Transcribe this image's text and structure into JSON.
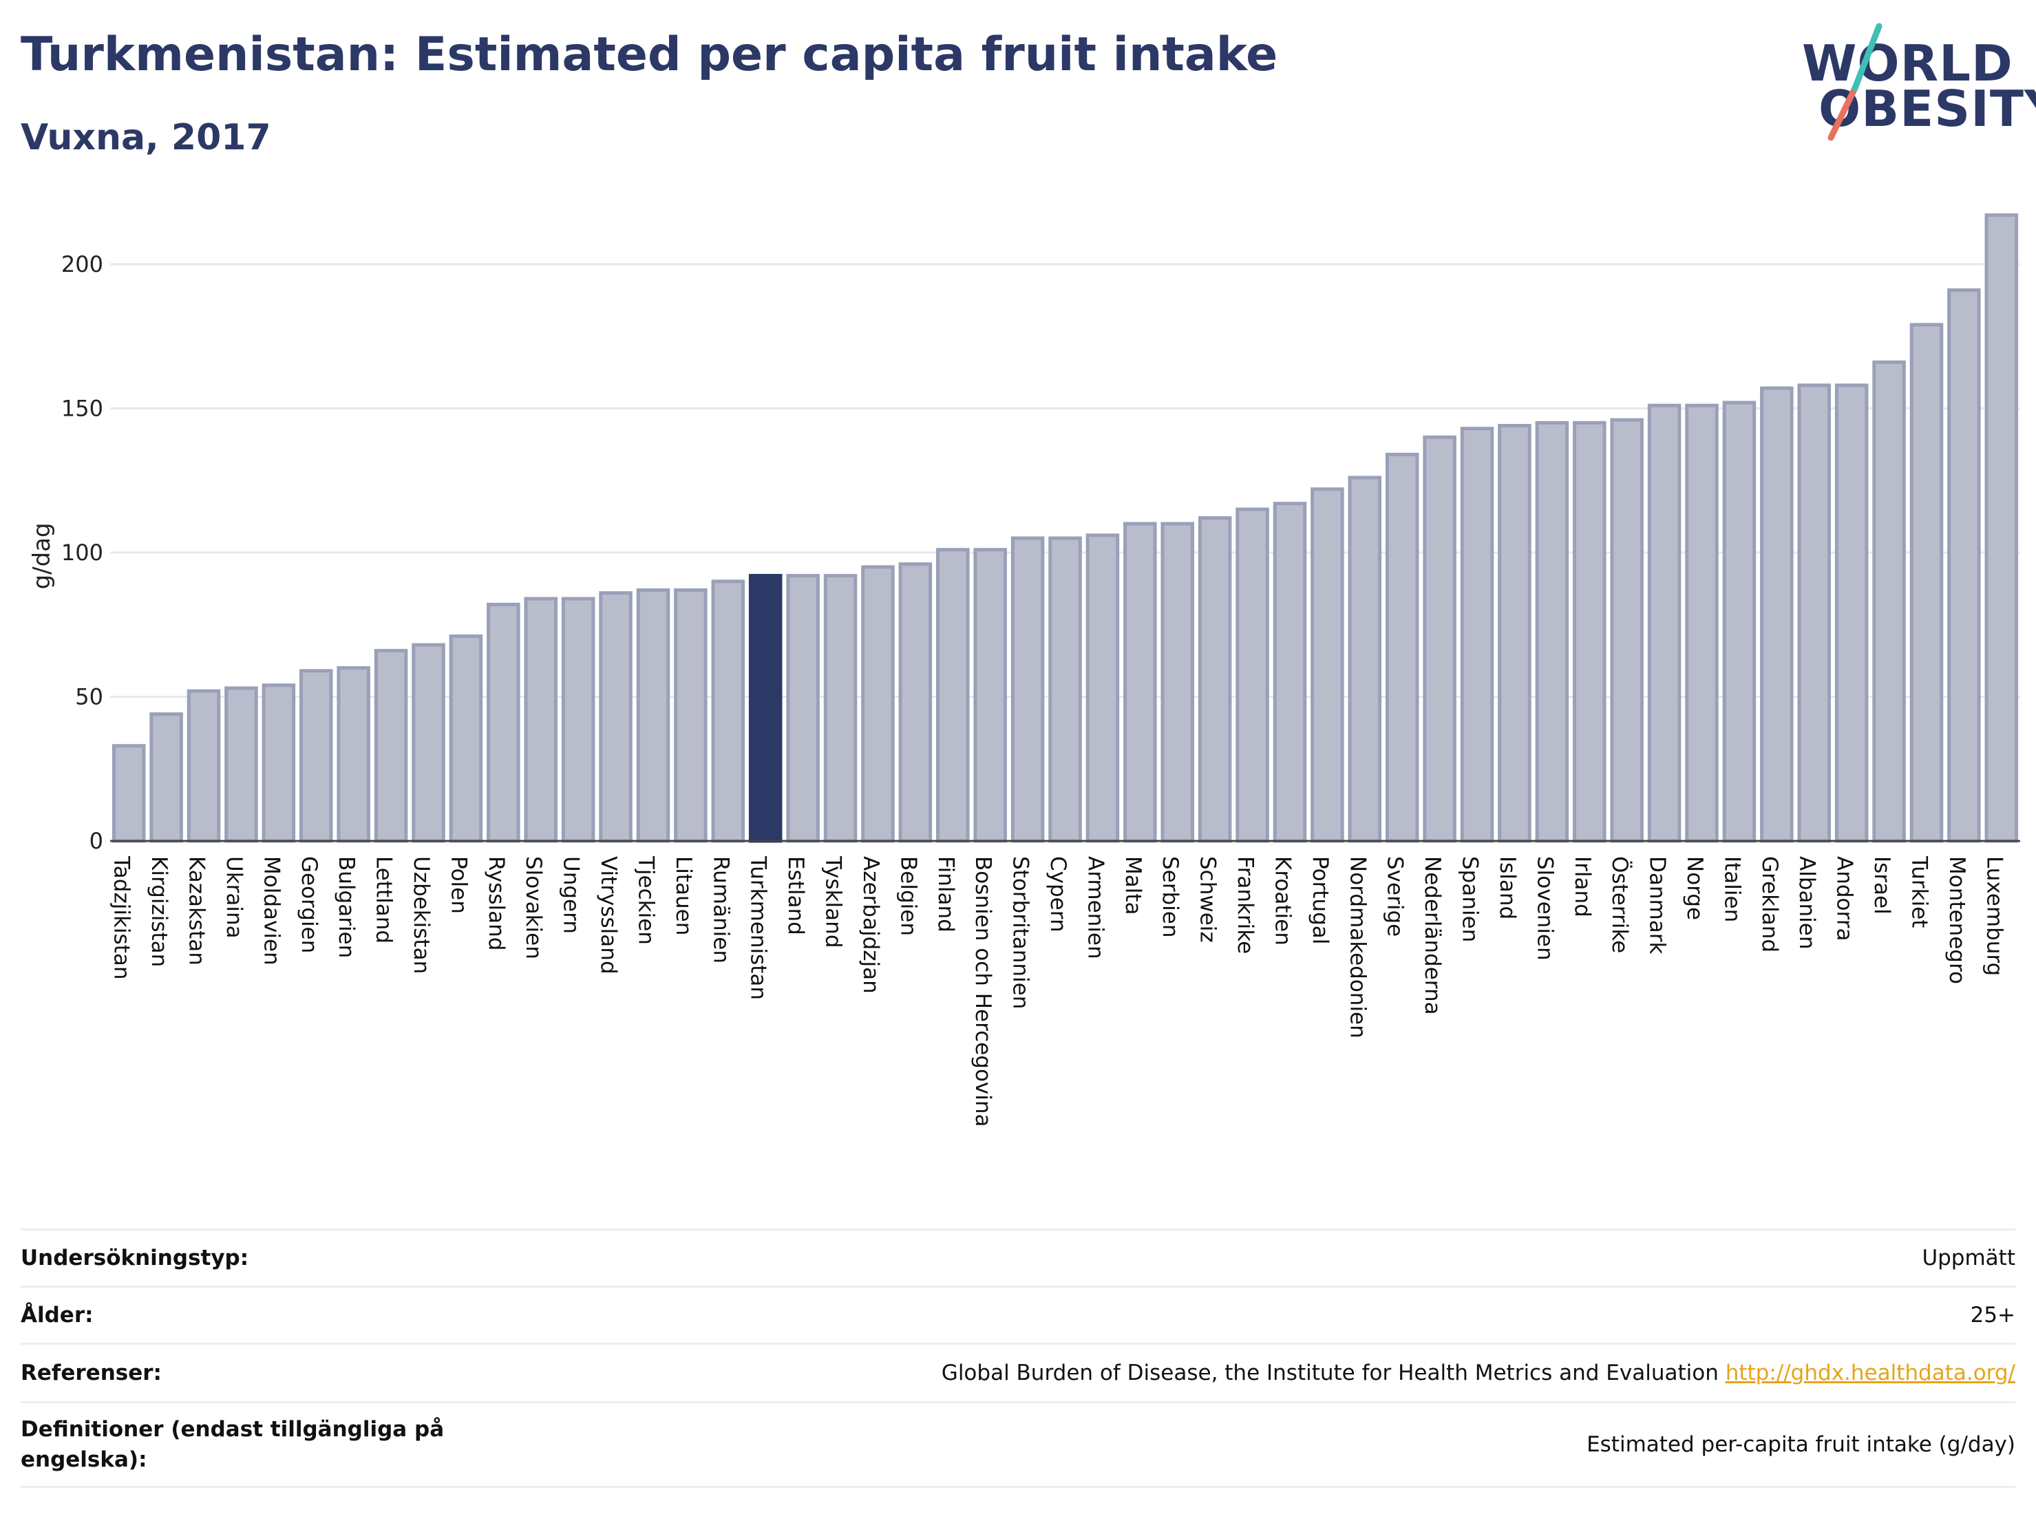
{
  "title": "Turkmenistan: Estimated per capita fruit intake",
  "subtitle": "Vuxna, 2017",
  "logo": {
    "line1": "WORLD",
    "line2": "OBESITY"
  },
  "colors": {
    "highlight": "#2c3866",
    "bar": "#b9bccb",
    "bar_edge": "#9aa0b8",
    "grid": "#e6e8ef",
    "accent_line": "#e8725e",
    "accent_line2": "#3fbfb5"
  },
  "chart_data": {
    "type": "bar",
    "ylabel": "g/dag",
    "ylim": [
      0,
      220
    ],
    "yticks": [
      0,
      50,
      100,
      150,
      200
    ],
    "grid": true,
    "highlight": "Turkmenistan",
    "categories": [
      "Tadzjikistan",
      "Kirgizistan",
      "Kazakstan",
      "Ukraina",
      "Moldavien",
      "Georgien",
      "Bulgarien",
      "Lettland",
      "Uzbekistan",
      "Polen",
      "Ryssland",
      "Slovakien",
      "Ungern",
      "Vitryssland",
      "Tjeckien",
      "Litauen",
      "Rumänien",
      "Turkmenistan",
      "Estland",
      "Tyskland",
      "Azerbajdzjan",
      "Belgien",
      "Finland",
      "Bosnien och Hercegovina",
      "Storbritannien",
      "Cypern",
      "Armenien",
      "Malta",
      "Serbien",
      "Schweiz",
      "Frankrike",
      "Kroatien",
      "Portugal",
      "Nordmakedonien",
      "Sverige",
      "Nederländerna",
      "Spanien",
      "Island",
      "Slovenien",
      "Irland",
      "Österrike",
      "Danmark",
      "Norge",
      "Italien",
      "Grekland",
      "Albanien",
      "Andorra",
      "Israel",
      "Turkiet",
      "Montenegro",
      "Luxemburg"
    ],
    "values": [
      33,
      44,
      52,
      53,
      54,
      59,
      60,
      66,
      68,
      71,
      82,
      84,
      84,
      86,
      87,
      87,
      90,
      92,
      92,
      92,
      95,
      96,
      101,
      101,
      105,
      105,
      106,
      110,
      110,
      112,
      115,
      117,
      122,
      126,
      134,
      140,
      143,
      144,
      145,
      145,
      146,
      151,
      151,
      152,
      157,
      158,
      158,
      166,
      179,
      191,
      217
    ]
  },
  "footer": {
    "rows": [
      {
        "label": "Undersökningstyp:",
        "value": "Uppmätt"
      },
      {
        "label": "Ålder:",
        "value": "25+"
      },
      {
        "label": "Referenser:",
        "value": "Global Burden of Disease, the Institute for Health Metrics and Evaluation",
        "link": "http://ghdx.healthdata.org/"
      },
      {
        "label": "Definitioner (endast tillgängliga på engelska):",
        "value": "Estimated per-capita fruit intake (g/day)"
      }
    ]
  }
}
